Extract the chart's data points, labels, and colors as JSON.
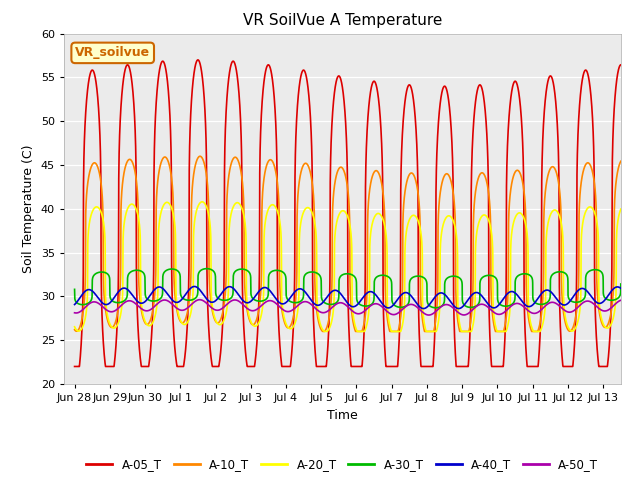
{
  "title": "VR SoilVue A Temperature",
  "xlabel": "Time",
  "ylabel": "Soil Temperature (C)",
  "ylim": [
    20,
    60
  ],
  "yticks": [
    20,
    25,
    30,
    35,
    40,
    45,
    50,
    55,
    60
  ],
  "background_color": "#e8e8e8",
  "plot_bg": "#ebebeb",
  "annotation_text": "VR_soilvue",
  "annotation_bg": "#ffffcc",
  "annotation_border": "#cc6600",
  "series_colors": {
    "A-05_T": "#dd0000",
    "A-10_T": "#ff8800",
    "A-20_T": "#ffff00",
    "A-30_T": "#00bb00",
    "A-40_T": "#0000cc",
    "A-50_T": "#aa00aa"
  },
  "x_tick_labels": [
    "Jun 28",
    "Jun 29",
    "Jun 30",
    "Jul 1",
    "Jul 2",
    "Jul 3",
    "Jul 4",
    "Jul 5",
    "Jul 6",
    "Jul 7",
    "Jul 8",
    "Jul 9",
    "Jul 10",
    "Jul 11",
    "Jul 12",
    "Jul 13"
  ],
  "n_days": 15.5,
  "samples_per_day": 288
}
